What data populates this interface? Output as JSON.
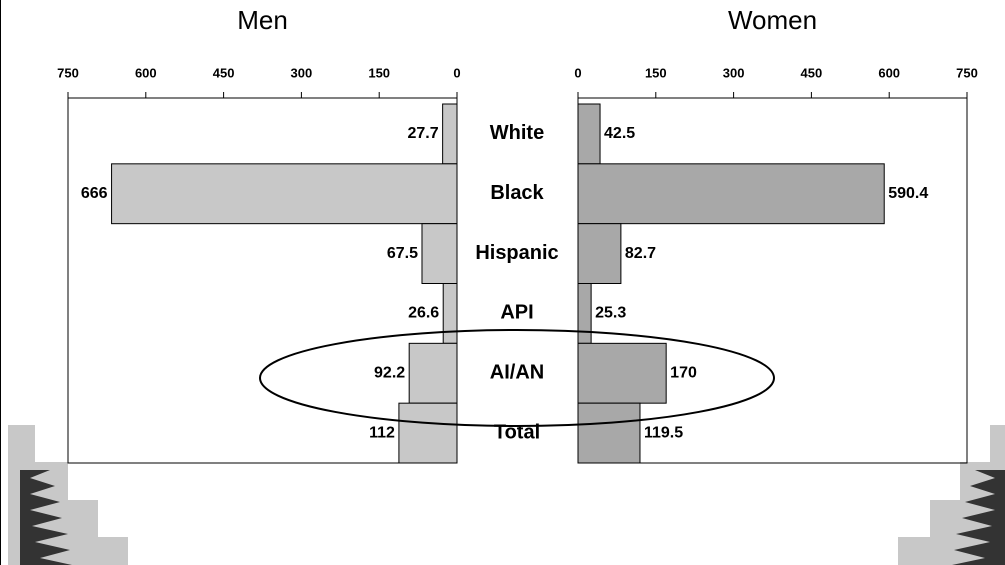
{
  "chart_data": {
    "type": "butterfly",
    "categories": [
      "White",
      "Black",
      "Hispanic",
      "API",
      "AI/AN",
      "Total"
    ],
    "series": [
      {
        "name": "Men",
        "color": "#c8c8c8",
        "values": [
          27.7,
          666,
          67.5,
          26.6,
          92.2,
          112
        ]
      },
      {
        "name": "Women",
        "color": "#a8a8a8",
        "values": [
          42.5,
          590.4,
          82.7,
          25.3,
          170,
          119.5
        ]
      }
    ],
    "xlim": [
      0,
      750
    ],
    "xticks": [
      0,
      150,
      300,
      450,
      600,
      750
    ]
  }
}
